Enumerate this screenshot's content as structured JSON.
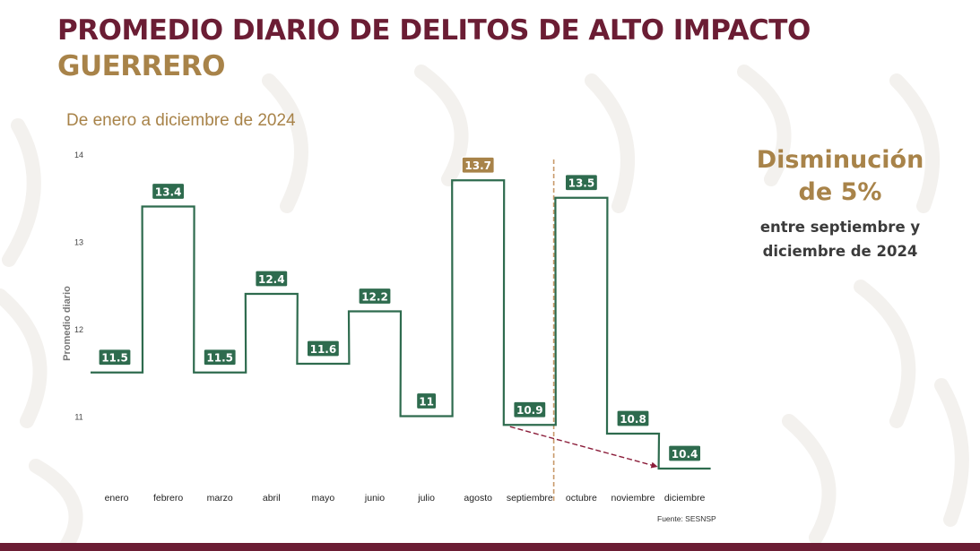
{
  "header": {
    "title": "PROMEDIO DIARIO DE DELITOS DE ALTO IMPACTO",
    "state": "GUERRERO",
    "subtitle": "De enero a diciembre de 2024"
  },
  "annotation": {
    "line1": "Disminución",
    "line2": "de 5%",
    "line3": "entre septiembre y",
    "line4": "diciembre de 2024"
  },
  "colors": {
    "title": "#6b1d34",
    "accent_gold": "#a88349",
    "line_green": "#2e6b4e",
    "highlight_label": "#a88349",
    "arrow": "#8b1d3a"
  },
  "chart_data": {
    "type": "line",
    "style": "step",
    "categories": [
      "enero",
      "febrero",
      "marzo",
      "abril",
      "mayo",
      "junio",
      "julio",
      "agosto",
      "septiembre",
      "octubre",
      "noviembre",
      "diciembre"
    ],
    "values": [
      11.5,
      13.4,
      11.5,
      12.4,
      11.6,
      12.2,
      11,
      13.7,
      10.9,
      13.5,
      10.8,
      10.4
    ],
    "value_labels": [
      "11.5",
      "13.4",
      "11.5",
      "12.4",
      "11.6",
      "12.2",
      "11",
      "13.7",
      "10.9",
      "13.5",
      "10.8",
      "10.4"
    ],
    "highlight_index": 7,
    "y_ticks": [
      "11",
      "12",
      "13",
      "14"
    ],
    "ylabel": "Promedio diario",
    "xlabel": "",
    "ylim": [
      10.4,
      14
    ],
    "grid": false,
    "divider_between": [
      "septiembre",
      "octubre"
    ],
    "trend_arrow": [
      "septiembre",
      "diciembre"
    ],
    "source": "Fuente: SESNSP"
  }
}
